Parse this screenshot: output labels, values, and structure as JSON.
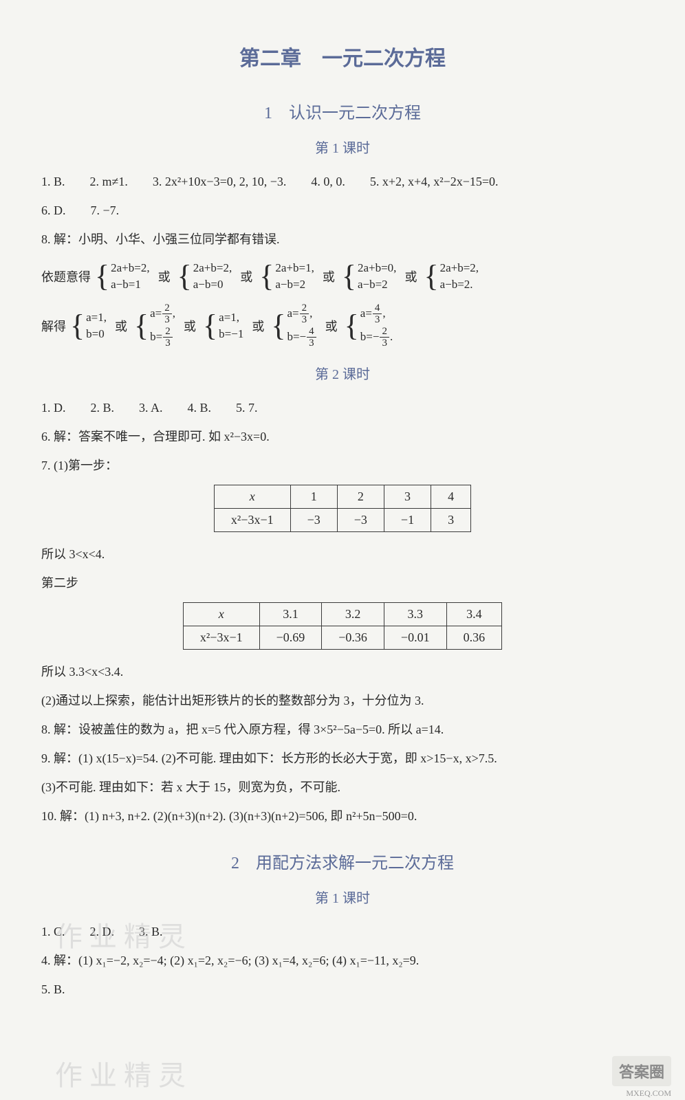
{
  "chapter_title": "第二章　一元二次方程",
  "section1": {
    "title": "1　认识一元二次方程",
    "lesson1": {
      "title": "第 1 课时",
      "items": [
        "1. B.　　2. m≠1.　　3. 2x²+10x−3=0, 2, 10, −3.　　4. 0, 0.　　5. x+2, x+4, x²−2x−15=0.",
        "6. D.　　7. −7.",
        "8. 解：小明、小华、小强三位同学都有错误."
      ],
      "sys_label": "依题意得",
      "systems": [
        {
          "a": "2a+b=2,",
          "b": "a−b=1"
        },
        {
          "a": "2a+b=2,",
          "b": "a−b=0"
        },
        {
          "a": "2a+b=1,",
          "b": "a−b=2"
        },
        {
          "a": "2a+b=0,",
          "b": "a−b=2"
        },
        {
          "a": "2a+b=2,",
          "b": "a−b=2."
        }
      ],
      "solve_label": "解得",
      "solutions": [
        {
          "type": "plain",
          "a": "a=1,",
          "b": "b=0"
        },
        {
          "type": "frac",
          "a_num": "2",
          "a_den": "3",
          "b_num": "2",
          "b_den": "3"
        },
        {
          "type": "plain",
          "a": "a=1,",
          "b": "b=−1"
        },
        {
          "type": "frac",
          "a_num": "2",
          "a_den": "3",
          "b_num": "−4",
          "b_sub": "3",
          "b_neg_prefix": "−",
          "b_frac_num": "4",
          "b_frac_den": "3"
        },
        {
          "type": "frac2",
          "a_num": "4",
          "a_den": "3",
          "b_neg": "−",
          "b_num": "2",
          "b_den": "3"
        }
      ],
      "or_word": "或"
    },
    "lesson2": {
      "title": "第 2 课时",
      "items1": [
        "1. D.　　2. B.　　3. A.　　4. B.　　5. 7.",
        "6. 解：答案不唯一，合理即可. 如 x²−3x=0.",
        "7. (1)第一步："
      ],
      "table1": {
        "header": [
          "x",
          "1",
          "2",
          "3",
          "4"
        ],
        "row": [
          "x²−3x−1",
          "−3",
          "−3",
          "−1",
          "3"
        ]
      },
      "after_t1": "所以 3<x<4.",
      "step2_label": "第二步",
      "table2": {
        "header": [
          "x",
          "3.1",
          "3.2",
          "3.3",
          "3.4"
        ],
        "row": [
          "x²−3x−1",
          "−0.69",
          "−0.36",
          "−0.01",
          "0.36"
        ]
      },
      "after_t2": "所以 3.3<x<3.4.",
      "items2": [
        "(2)通过以上探索，能估计出矩形铁片的长的整数部分为 3，十分位为 3.",
        "8. 解：设被盖住的数为 a，把 x=5 代入原方程，得 3×5²−5a−5=0. 所以 a=14.",
        "9. 解：(1) x(15−x)=54. (2)不可能. 理由如下：长方形的长必大于宽，即 x>15−x, x>7.5.",
        "(3)不可能. 理由如下：若 x 大于 15，则宽为负，不可能.",
        "10. 解：(1) n+3, n+2. (2)(n+3)(n+2). (3)(n+3)(n+2)=506, 即 n²+5n−500=0."
      ]
    }
  },
  "section2": {
    "title": "2　用配方法求解一元二次方程",
    "lesson1": {
      "title": "第 1 课时",
      "items": [
        "1. C.　　2. D.　　3. B.",
        "4. 解：(1) x₁=−2, x₂=−4; (2) x₁=2, x₂=−6; (3) x₁=4, x₂=6; (4) x₁=−11, x₂=9.",
        "5. B."
      ]
    }
  },
  "or": "或",
  "comma": "，",
  "watermark1": "作 业 精 灵",
  "watermark2": "作 业 精 灵",
  "badge": "答案圈",
  "badge_sub": "MXEQ.COM"
}
